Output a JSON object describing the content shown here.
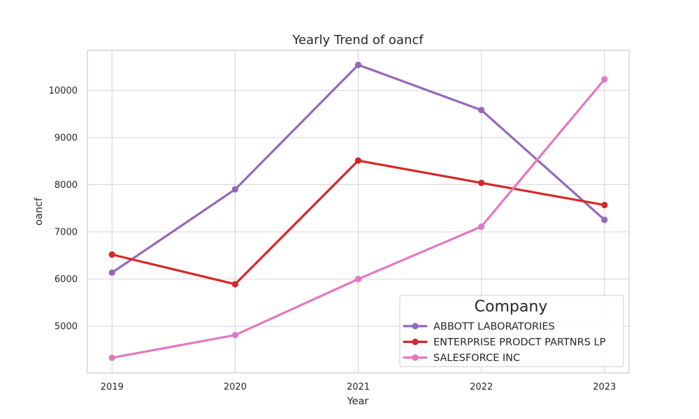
{
  "chart_data": {
    "type": "line",
    "title": "Yearly Trend of oancf",
    "xlabel": "Year",
    "ylabel": "oancf",
    "x": [
      2019,
      2020,
      2021,
      2022,
      2023
    ],
    "x_tick_labels": [
      "2019",
      "2020",
      "2021",
      "2022",
      "2023"
    ],
    "yticks": [
      5000,
      6000,
      7000,
      8000,
      9000,
      10000
    ],
    "y_tick_labels": [
      "5000",
      "6000",
      "7000",
      "8000",
      "9000",
      "10000"
    ],
    "xlim": [
      2018.8,
      2023.2
    ],
    "ylim": [
      4010,
      10850
    ],
    "grid": true,
    "legend": {
      "title": "Company",
      "position": "bottom-right"
    },
    "series": [
      {
        "name": "ABBOTT LABORATORIES",
        "color": "#9467bd",
        "values": [
          6136,
          7901,
          10540,
          9582,
          7255
        ]
      },
      {
        "name": "ENTERPRISE PRODCT PARTNRS LP",
        "color": "#d62728",
        "values": [
          6520,
          5891,
          8513,
          8039,
          7569
        ]
      },
      {
        "name": "SALESFORCE INC",
        "color": "#e377c2",
        "values": [
          4331,
          4813,
          6000,
          7111,
          10234
        ]
      }
    ]
  }
}
